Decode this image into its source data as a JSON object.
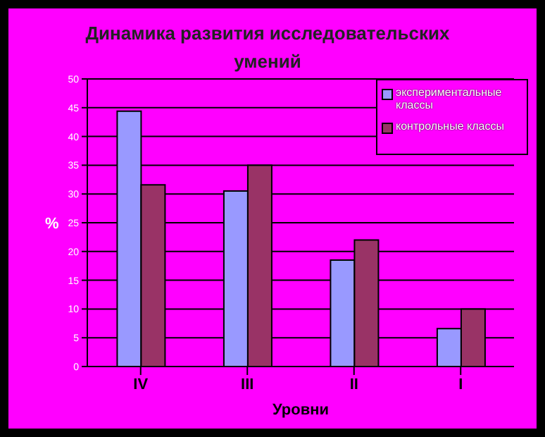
{
  "chart_data": {
    "type": "bar",
    "title": "Динамика развития исследовательских умений",
    "xlabel": "Уровни",
    "ylabel": "%",
    "categories": [
      "IV",
      "III",
      "II",
      "I"
    ],
    "series": [
      {
        "name": "экспериментальные классы",
        "color": "#9999ff",
        "values": [
          44.4,
          30.5,
          18.5,
          6.6
        ]
      },
      {
        "name": "контрольные классы",
        "color": "#993366",
        "values": [
          31.6,
          35,
          22,
          10
        ]
      }
    ],
    "ylim": [
      0,
      50
    ],
    "yticks": [
      0,
      5,
      10,
      15,
      20,
      25,
      30,
      35,
      40,
      45,
      50
    ],
    "grid": "y",
    "legend": "top right"
  }
}
